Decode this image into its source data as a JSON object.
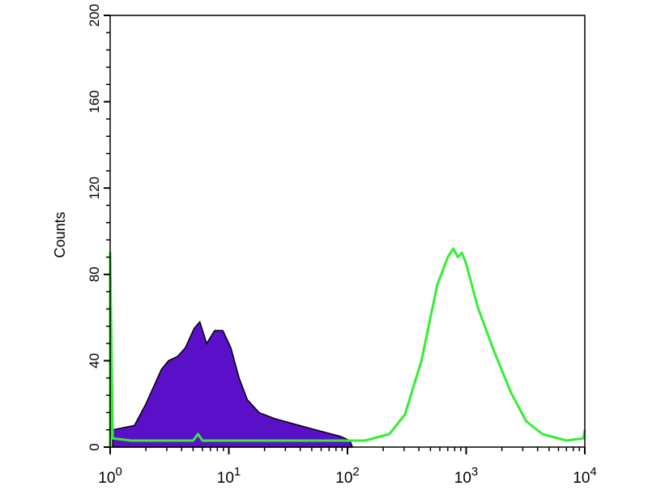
{
  "chart_data": {
    "type": "area",
    "title": "",
    "xlabel": "",
    "ylabel": "Counts",
    "x_scale": "log",
    "xlim": [
      1,
      10000
    ],
    "ylim": [
      0,
      200
    ],
    "grid": false,
    "x_ticks": [
      {
        "base": "10",
        "exp": "0",
        "value": 1
      },
      {
        "base": "10",
        "exp": "1",
        "value": 10
      },
      {
        "base": "10",
        "exp": "2",
        "value": 100
      },
      {
        "base": "10",
        "exp": "3",
        "value": 1000
      },
      {
        "base": "10",
        "exp": "4",
        "value": 10000
      }
    ],
    "y_ticks": [
      "0",
      "40",
      "80",
      "120",
      "160",
      "200"
    ],
    "series": [
      {
        "style": "filled",
        "color": "#5a0fc8",
        "edge_color": "#000000",
        "x": [
          1.05,
          1.3,
          1.6,
          2.0,
          2.7,
          3.1,
          3.7,
          4.3,
          5.1,
          5.7,
          6.5,
          7.6,
          8.9,
          10.4,
          12.2,
          14.3,
          18,
          25,
          34,
          46,
          63,
          87,
          105,
          110
        ],
        "y": [
          8,
          9,
          10,
          20,
          36,
          40,
          42,
          46,
          55,
          58,
          48,
          54,
          54,
          46,
          32,
          22,
          16,
          13,
          11,
          9,
          7,
          5,
          3,
          0
        ]
      },
      {
        "style": "line",
        "color": "#33ee33",
        "x": [
          1.0,
          1.0,
          1.05,
          1.5,
          2.5,
          5,
          5.5,
          6,
          10,
          20,
          50,
          100,
          140,
          225,
          305,
          420,
          570,
          700,
          780,
          850,
          920,
          1000,
          1250,
          1700,
          2400,
          3200,
          4400,
          7000,
          9700,
          10000
        ],
        "y": [
          0,
          90,
          4,
          3,
          3,
          3,
          6,
          3,
          3,
          3,
          3,
          3,
          3,
          6,
          15,
          40,
          75,
          88,
          92,
          88,
          90,
          85,
          65,
          45,
          25,
          12,
          6,
          3,
          4,
          8
        ]
      }
    ]
  }
}
